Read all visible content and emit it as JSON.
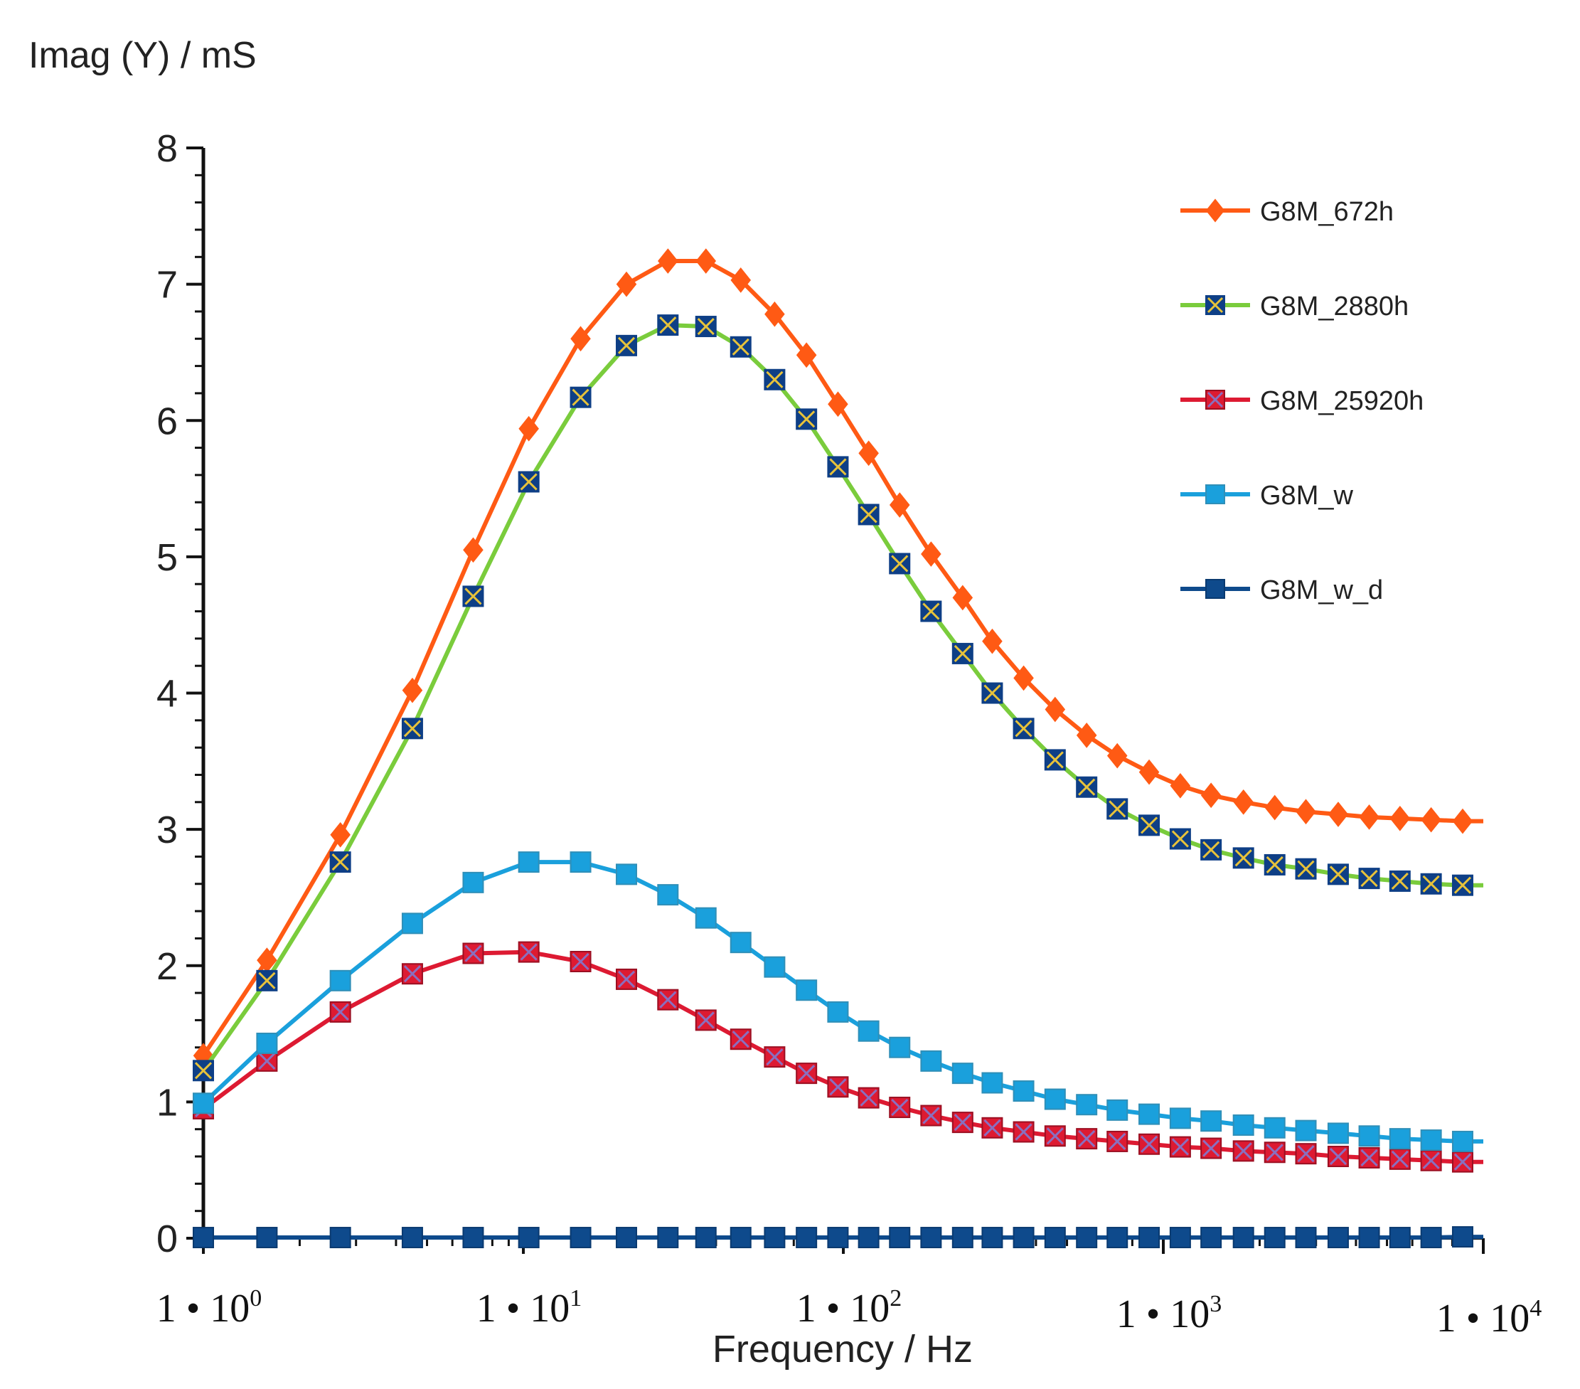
{
  "chart_data": {
    "type": "line",
    "ylabel": "Imag (Y) / mS",
    "xlabel": "Frequency / Hz",
    "x_scale": "log",
    "xlim": [
      1,
      10000
    ],
    "ylim": [
      0,
      8
    ],
    "y_ticks": [
      "0",
      "1",
      "2",
      "3",
      "4",
      "5",
      "6",
      "7",
      "8"
    ],
    "x_ticks": [
      {
        "base": "1 • 10",
        "exp": "0"
      },
      {
        "base": "1 • 10",
        "exp": "1"
      },
      {
        "base": "1 • 10",
        "exp": "2"
      },
      {
        "base": "1 • 10",
        "exp": "3"
      },
      {
        "base": "1 • 10",
        "exp": "4"
      }
    ],
    "legend_position": "top-right",
    "x": [
      1,
      1.58,
      2.68,
      4.5,
      6.97,
      10.4,
      15.1,
      21,
      28.3,
      37.2,
      47.8,
      61,
      76.7,
      96.2,
      120,
      150,
      188,
      236,
      292,
      366,
      459,
      576,
      718,
      903,
      1130,
      1410,
      1780,
      2230,
      2790,
      3520,
      4400,
      5490,
      6870,
      8620
    ],
    "series": [
      {
        "name": "G8M_672h",
        "color": "#ff5a14",
        "marker": "diamond",
        "values": [
          1.34,
          2.04,
          2.96,
          4.02,
          5.05,
          5.94,
          6.6,
          7.0,
          7.17,
          7.17,
          7.03,
          6.78,
          6.48,
          6.12,
          5.76,
          5.38,
          5.02,
          4.7,
          4.38,
          4.11,
          3.88,
          3.69,
          3.54,
          3.42,
          3.32,
          3.25,
          3.2,
          3.16,
          3.13,
          3.11,
          3.09,
          3.08,
          3.07,
          3.06
        ]
      },
      {
        "name": "G8M_2880h",
        "color": "#7acc3c",
        "marker": "square-x",
        "values": [
          1.23,
          1.89,
          2.76,
          3.74,
          4.71,
          5.55,
          6.17,
          6.55,
          6.7,
          6.69,
          6.54,
          6.3,
          6.01,
          5.66,
          5.31,
          4.95,
          4.6,
          4.29,
          4.0,
          3.74,
          3.51,
          3.31,
          3.15,
          3.03,
          2.93,
          2.85,
          2.79,
          2.74,
          2.71,
          2.67,
          2.64,
          2.62,
          2.6,
          2.59
        ]
      },
      {
        "name": "G8M_25920h",
        "color": "#dd1a32",
        "marker": "square-x",
        "values": [
          0.95,
          1.3,
          1.66,
          1.94,
          2.09,
          2.1,
          2.03,
          1.9,
          1.75,
          1.6,
          1.46,
          1.33,
          1.21,
          1.11,
          1.03,
          0.96,
          0.9,
          0.85,
          0.81,
          0.78,
          0.75,
          0.73,
          0.71,
          0.69,
          0.67,
          0.66,
          0.64,
          0.63,
          0.62,
          0.6,
          0.59,
          0.58,
          0.57,
          0.56
        ]
      },
      {
        "name": "G8M_w",
        "color": "#1aa0dc",
        "marker": "square",
        "values": [
          0.99,
          1.43,
          1.89,
          2.31,
          2.61,
          2.76,
          2.76,
          2.67,
          2.52,
          2.35,
          2.17,
          1.99,
          1.82,
          1.66,
          1.52,
          1.4,
          1.3,
          1.21,
          1.14,
          1.08,
          1.02,
          0.98,
          0.94,
          0.91,
          0.88,
          0.86,
          0.83,
          0.81,
          0.79,
          0.77,
          0.75,
          0.73,
          0.72,
          0.71
        ]
      },
      {
        "name": "G8M_w_d",
        "color": "#0e4a8c",
        "marker": "square",
        "values": [
          0.005,
          0.005,
          0.005,
          0.005,
          0.005,
          0.005,
          0.005,
          0.005,
          0.005,
          0.005,
          0.005,
          0.005,
          0.005,
          0.005,
          0.005,
          0.005,
          0.005,
          0.005,
          0.005,
          0.005,
          0.005,
          0.005,
          0.005,
          0.005,
          0.005,
          0.005,
          0.005,
          0.005,
          0.005,
          0.005,
          0.005,
          0.005,
          0.005,
          0.01
        ]
      }
    ]
  }
}
